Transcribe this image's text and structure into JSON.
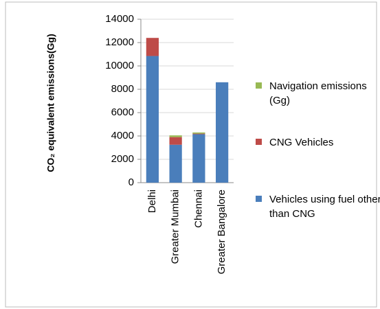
{
  "chart_data": {
    "type": "stacked_bar",
    "y_label": "CO₂ equivalent emissions(Gg)",
    "categories": [
      "Delhi",
      "Greater Mumbai",
      "Chennai",
      "Greater Bangalore"
    ],
    "series": [
      {
        "name": "Vehicles using fuel other than CNG",
        "color": "#4a7ebb",
        "values": [
          10850,
          3250,
          4150,
          8600
        ]
      },
      {
        "name": "CNG Vehicles",
        "color": "#be4b48",
        "values": [
          1550,
          650,
          50,
          0
        ]
      },
      {
        "name": "Navigation emissions (Gg)",
        "color": "#98b954",
        "values": [
          0,
          150,
          100,
          0
        ]
      }
    ],
    "ylim": [
      0,
      14000
    ],
    "yticks": [
      0,
      2000,
      4000,
      6000,
      8000,
      10000,
      12000,
      14000
    ],
    "grid": true,
    "legend": "right"
  }
}
